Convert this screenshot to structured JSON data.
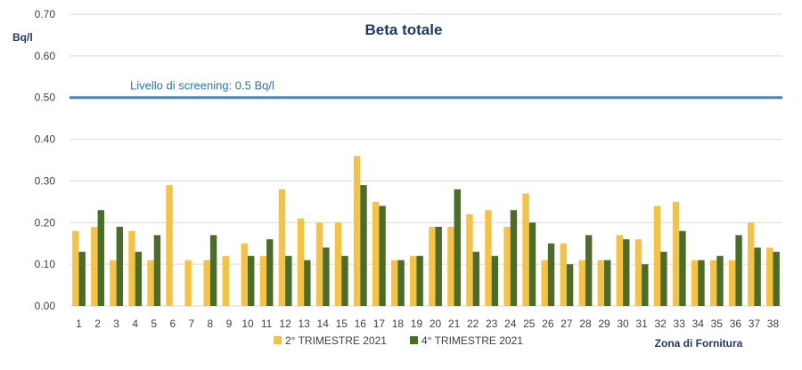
{
  "chart_data": {
    "type": "bar",
    "title": "Beta totale",
    "ylabel": "Bq/l",
    "xlabel": "Zona di Fornitura",
    "ylim": [
      0,
      0.7
    ],
    "yticks": [
      "0.00",
      "0.10",
      "0.20",
      "0.30",
      "0.40",
      "0.50",
      "0.60",
      "0.70"
    ],
    "categories": [
      "1",
      "2",
      "3",
      "4",
      "5",
      "6",
      "7",
      "8",
      "9",
      "10",
      "11",
      "12",
      "13",
      "14",
      "15",
      "16",
      "17",
      "18",
      "19",
      "20",
      "21",
      "22",
      "23",
      "24",
      "25",
      "26",
      "27",
      "28",
      "29",
      "30",
      "31",
      "32",
      "33",
      "34",
      "35",
      "36",
      "37",
      "38"
    ],
    "series": [
      {
        "name": "2° TRIMESTRE 2021",
        "color": "#F5C242",
        "values": [
          0.18,
          0.19,
          0.11,
          0.18,
          0.11,
          0.29,
          0.11,
          0.11,
          0.12,
          0.15,
          0.12,
          0.28,
          0.21,
          0.2,
          0.2,
          0.36,
          0.25,
          0.11,
          0.12,
          0.19,
          0.19,
          0.22,
          0.23,
          0.19,
          0.27,
          0.11,
          0.15,
          0.11,
          0.11,
          0.17,
          0.16,
          0.24,
          0.25,
          0.11,
          0.11,
          0.11,
          0.2,
          0.14
        ]
      },
      {
        "name": "4° TRIMESTRE 2021",
        "color": "#4A6E2A",
        "values": [
          0.13,
          0.23,
          0.19,
          0.13,
          0.17,
          null,
          null,
          0.17,
          null,
          0.12,
          0.16,
          0.12,
          0.11,
          0.14,
          0.12,
          0.29,
          0.24,
          0.11,
          0.12,
          0.19,
          0.28,
          0.13,
          0.12,
          0.23,
          0.2,
          0.15,
          0.1,
          0.17,
          0.11,
          0.16,
          0.1,
          0.13,
          0.18,
          0.11,
          0.12,
          0.17,
          0.14,
          0.13
        ]
      }
    ],
    "reference_line": {
      "value": 0.5,
      "label": "Livello di screening: 0.5 Bq/l",
      "color": "#4A86BE"
    },
    "grid": true,
    "legend_position": "bottom"
  }
}
